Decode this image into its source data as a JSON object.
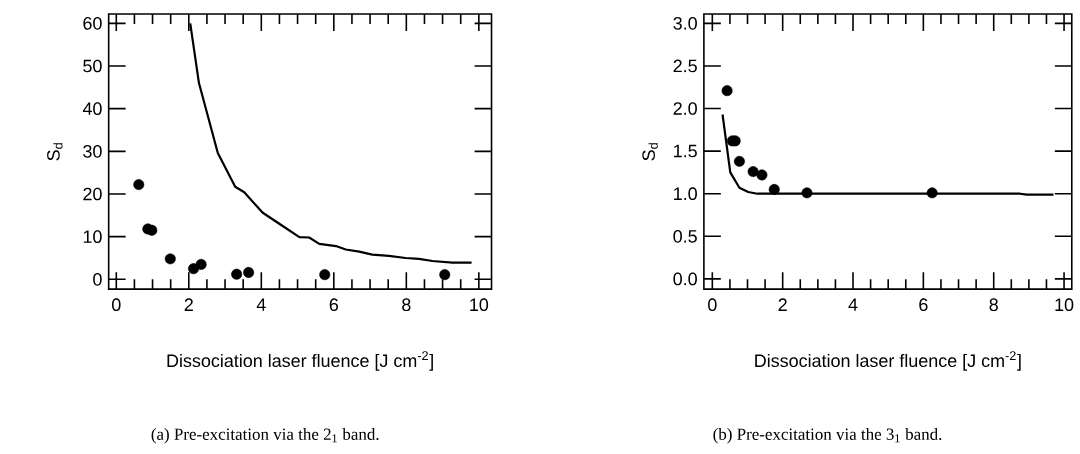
{
  "chart_data": [
    {
      "type": "scatter",
      "xlabel": "Dissociation laser fluence [J cm$^{-2}$]",
      "ylabel": "S$_{d}$",
      "annotations": [
        "(a) Pre-excitation via the 2$_{1}$ band."
      ],
      "xlim": [
        -0.21,
        10.35
      ],
      "ylim": [
        -2.3,
        62.2
      ],
      "xticks": [
        0,
        2,
        4,
        6,
        8,
        10
      ],
      "yticks": [
        0,
        10,
        20,
        30,
        40,
        50,
        60
      ],
      "series": [
        {
          "color": "#000000",
          "marker": "circle",
          "x": [
            0.62,
            0.87,
            0.98,
            1.49,
            2.13,
            2.34,
            3.32,
            3.65,
            5.75,
            9.06
          ],
          "values": [
            22.2,
            11.8,
            11.5,
            4.8,
            2.5,
            3.5,
            1.2,
            1.6,
            1.1,
            1.1
          ]
        },
        {
          "type": "line",
          "color": "#000000",
          "marker": "none",
          "line_style": "solid",
          "x": [
            2.04,
            2.28,
            2.8,
            3.28,
            3.53,
            4.04,
            4.59,
            5.05,
            5.32,
            5.6,
            6.06,
            6.33,
            6.7,
            7.06,
            7.52,
            7.98,
            8.35,
            8.72,
            9.27,
            9.8
          ],
          "values": [
            60,
            46,
            29.6,
            21.7,
            20.4,
            15.6,
            12.5,
            9.9,
            9.8,
            8.3,
            7.8,
            7.0,
            6.5,
            5.8,
            5.5,
            5.0,
            4.8,
            4.3,
            3.9,
            3.9
          ]
        }
      ]
    },
    {
      "type": "scatter",
      "xlabel": "Dissociation laser fluence [J cm$^{-2}$]",
      "ylabel": "S$_{d}$",
      "annotations": [
        "(b) Pre-excitation via the 3$_{1}$ band."
      ],
      "xlim": [
        -0.24,
        10.22
      ],
      "ylim": [
        -0.12,
        3.11
      ],
      "xticks": [
        0,
        2,
        4,
        6,
        8,
        10
      ],
      "yticks": [
        {
          "value": 0,
          "label": "0.0"
        },
        {
          "value": 0.5,
          "label": "0.5"
        },
        {
          "value": 1,
          "label": "1.0"
        },
        {
          "value": 1.5,
          "label": "1.5"
        },
        {
          "value": 2,
          "label": "2.0"
        },
        {
          "value": 2.5,
          "label": "2.5"
        },
        {
          "value": 3,
          "label": "3.0"
        }
      ],
      "series": [
        {
          "color": "#000000",
          "marker": "circle",
          "x": [
            0.42,
            0.57,
            0.65,
            0.77,
            1.16,
            1.41,
            1.76,
            2.69,
            6.25
          ],
          "values": [
            2.21,
            1.62,
            1.62,
            1.38,
            1.26,
            1.22,
            1.05,
            1.01,
            1.01
          ]
        },
        {
          "type": "line",
          "color": "#000000",
          "marker": "none",
          "line_style": "solid",
          "x": [
            0.29,
            0.51,
            0.77,
            1.02,
            1.28,
            2.62,
            4.5,
            8.75,
            8.94,
            9.7
          ],
          "values": [
            1.93,
            1.25,
            1.07,
            1.02,
            1.0,
            1.0,
            1.0,
            1.0,
            0.99,
            0.99
          ]
        }
      ]
    }
  ]
}
